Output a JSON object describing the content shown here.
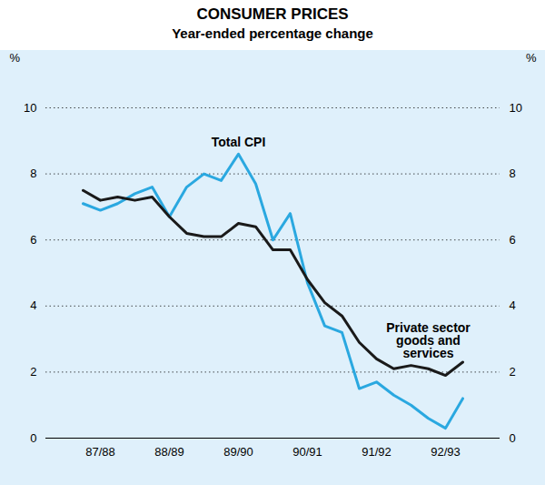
{
  "chart_data": {
    "type": "line",
    "title": "CONSUMER PRICES",
    "subtitle": "Year-ended percentage change",
    "y_label": "%",
    "categories": [
      null,
      "87/88",
      null,
      null,
      null,
      "88/89",
      null,
      null,
      null,
      "89/90",
      null,
      null,
      null,
      "90/91",
      null,
      null,
      null,
      "91/92",
      null,
      null,
      null,
      "92/93",
      null
    ],
    "series": [
      {
        "name": "Total CPI",
        "color": "#2aa8e0",
        "values": [
          7.1,
          6.9,
          7.1,
          7.4,
          7.6,
          6.7,
          7.6,
          8.0,
          7.8,
          8.6,
          7.7,
          6.0,
          6.8,
          4.7,
          3.4,
          3.2,
          1.5,
          1.7,
          1.3,
          1.0,
          0.6,
          0.3,
          1.2
        ]
      },
      {
        "name": "Private sector goods and services",
        "color": "#1a1a1a",
        "values": [
          7.5,
          7.2,
          7.3,
          7.2,
          7.3,
          6.7,
          6.2,
          6.1,
          6.1,
          6.5,
          6.4,
          5.7,
          5.7,
          4.8,
          4.1,
          3.7,
          2.9,
          2.4,
          2.1,
          2.2,
          2.1,
          1.9,
          2.3
        ]
      }
    ],
    "ylim": [
      0,
      10
    ],
    "yticks": [
      0,
      2,
      4,
      6,
      8,
      10
    ],
    "grid": true
  }
}
